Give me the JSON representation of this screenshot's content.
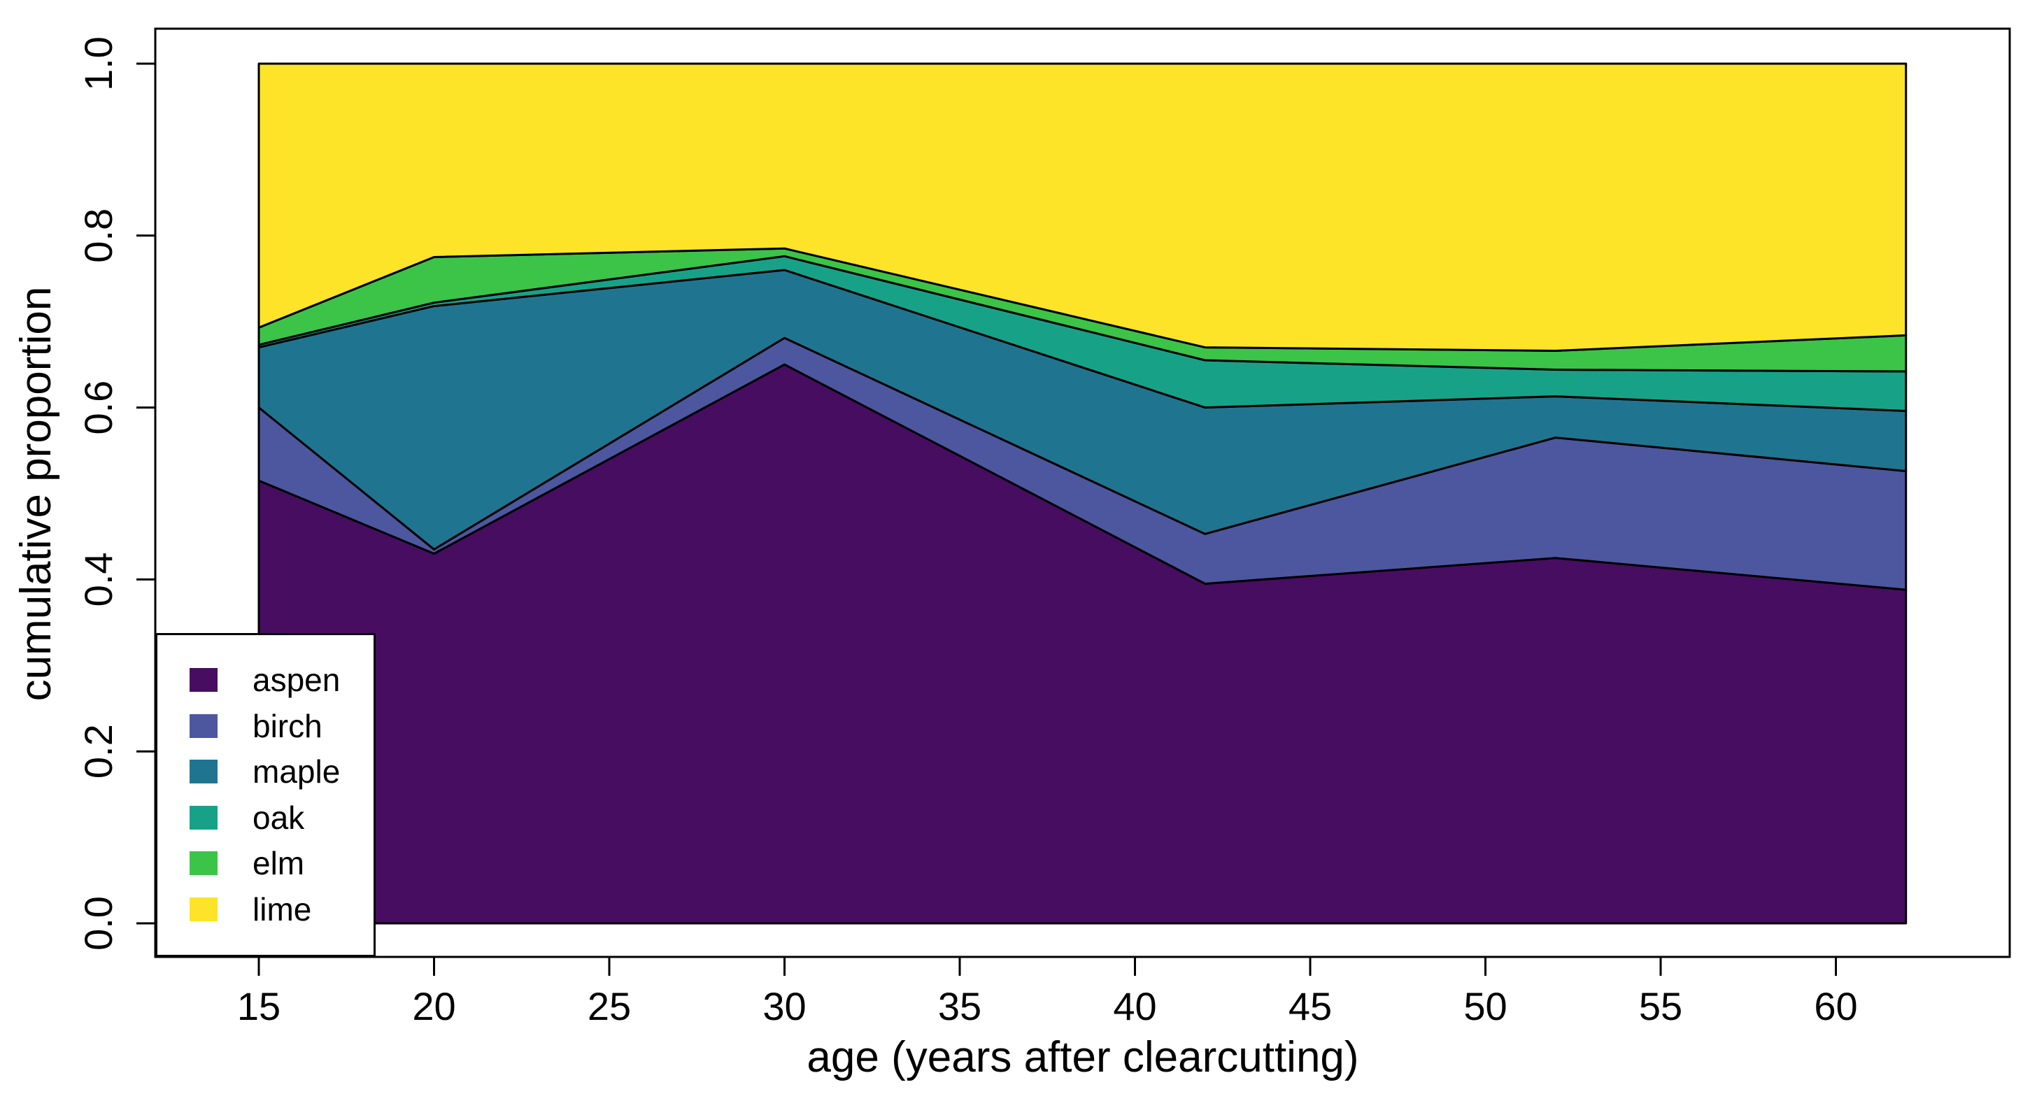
{
  "chart_data": {
    "type": "area",
    "stacked": true,
    "title": "",
    "xlabel": "age (years after clearcutting)",
    "ylabel": "cumulative proportion",
    "x": [
      15,
      20,
      30,
      42,
      52,
      62
    ],
    "series": [
      {
        "name": "aspen",
        "color": "#470D60",
        "values": [
          0.515,
          0.43,
          0.65,
          0.395,
          0.425,
          0.388
        ]
      },
      {
        "name": "birch",
        "color": "#4C579F",
        "values": [
          0.085,
          0.005,
          0.031,
          0.058,
          0.14,
          0.138
        ]
      },
      {
        "name": "maple",
        "color": "#1F7590",
        "values": [
          0.07,
          0.283,
          0.079,
          0.147,
          0.048,
          0.07
        ]
      },
      {
        "name": "oak",
        "color": "#17A288",
        "values": [
          0.003,
          0.004,
          0.016,
          0.055,
          0.031,
          0.046
        ]
      },
      {
        "name": "elm",
        "color": "#3BC448",
        "values": [
          0.02,
          0.053,
          0.009,
          0.015,
          0.022,
          0.042
        ]
      },
      {
        "name": "lime",
        "color": "#FDE428",
        "values": [
          0.307,
          0.225,
          0.215,
          0.33,
          0.334,
          0.316
        ]
      }
    ],
    "x_ticks": [
      "15",
      "20",
      "25",
      "30",
      "35",
      "40",
      "45",
      "50",
      "55",
      "60"
    ],
    "x_tick_values": [
      15,
      20,
      25,
      30,
      35,
      40,
      45,
      50,
      55,
      60
    ],
    "y_ticks": [
      "0.0",
      "0.2",
      "0.4",
      "0.6",
      "0.8",
      "1.0"
    ],
    "y_tick_values": [
      0.0,
      0.2,
      0.4,
      0.6,
      0.8,
      1.0
    ],
    "xlim": [
      15,
      62
    ],
    "ylim": [
      0.0,
      1.0
    ],
    "grid": false,
    "legend_position": "bottom-left",
    "outline_color": "#000000",
    "background_color": "#FFFFFF"
  }
}
